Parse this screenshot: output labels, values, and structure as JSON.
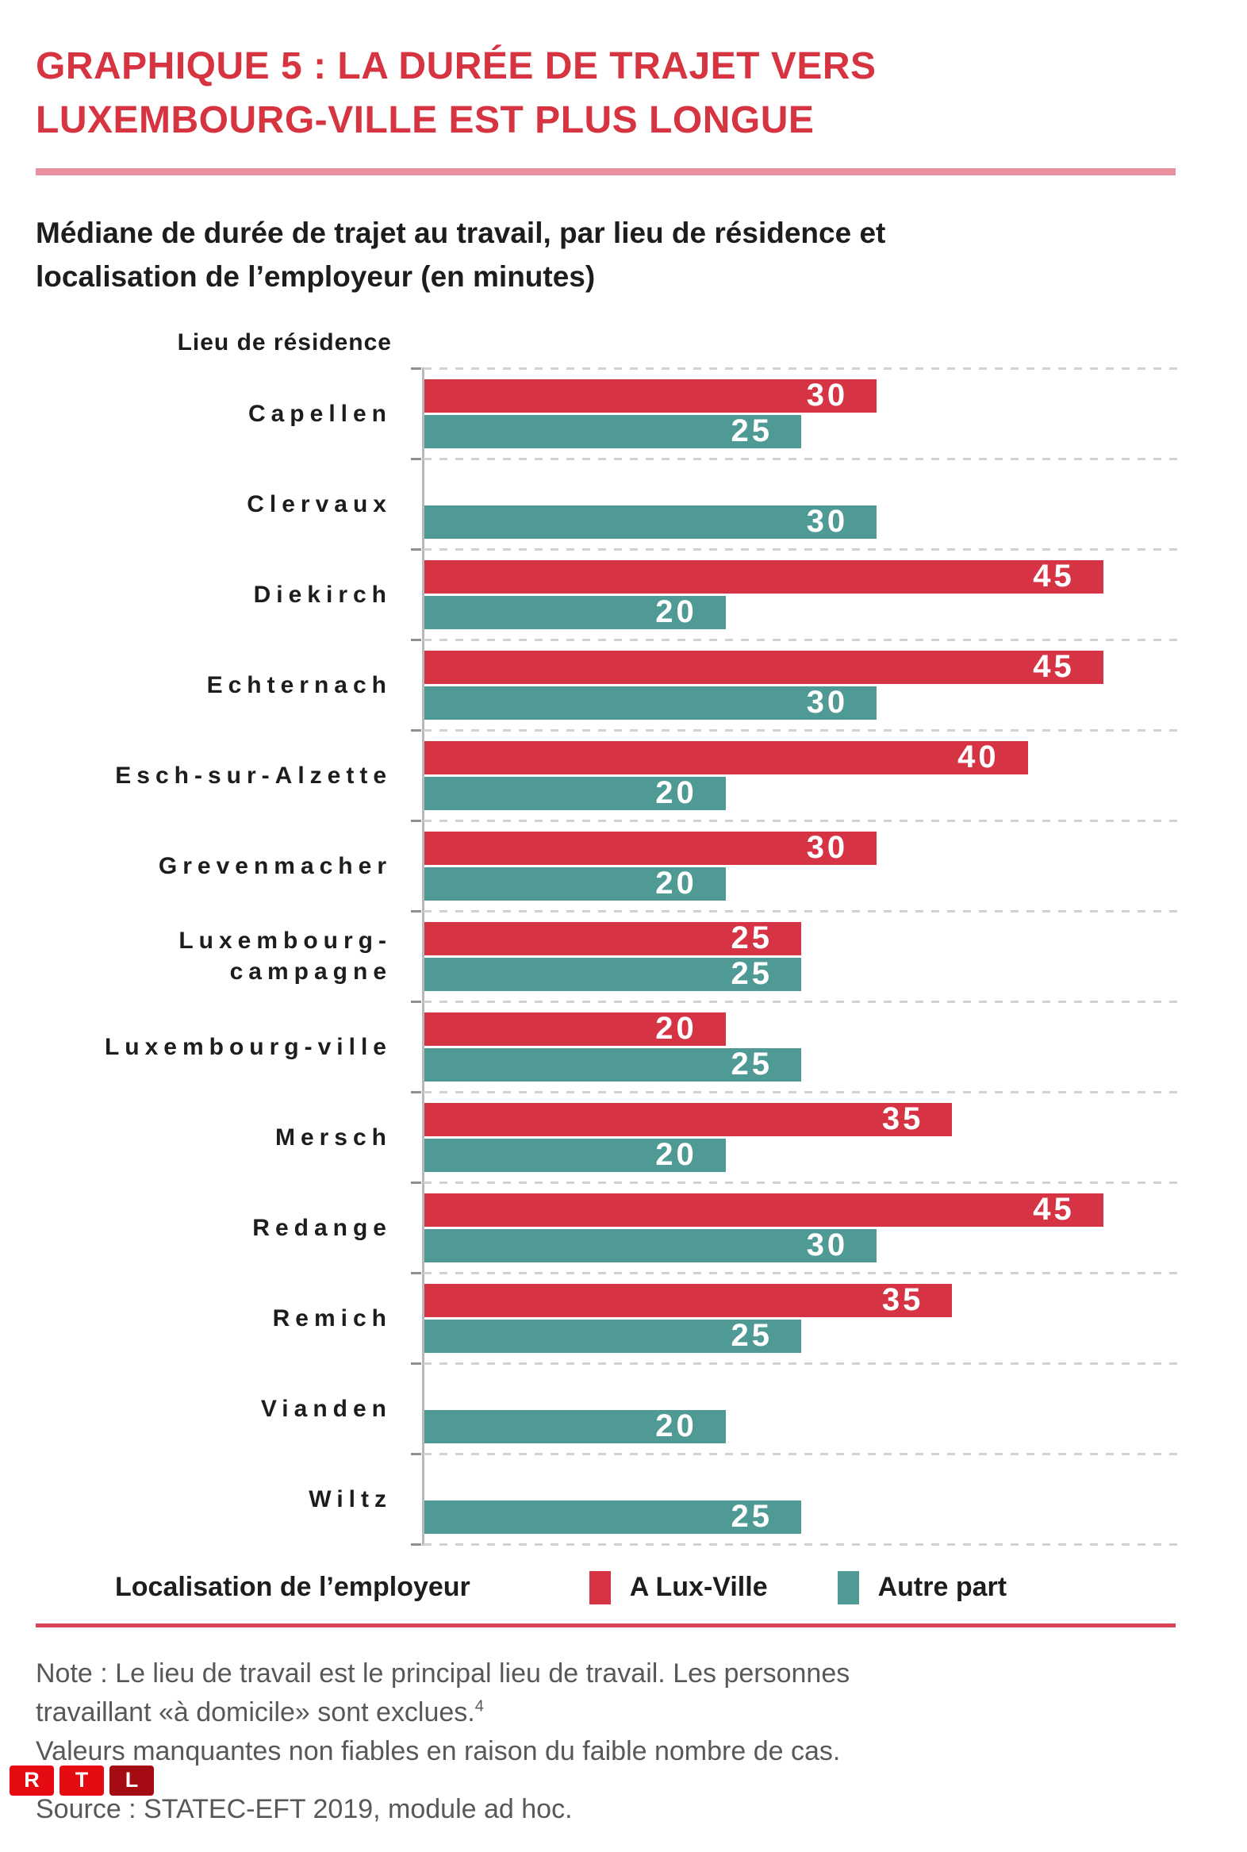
{
  "header": {
    "title_line1": "GRAPHIQUE 5 : LA DURÉE DE TRAJET VERS",
    "title_line2": "LUXEMBOURG-VILLE EST PLUS LONGUE"
  },
  "subtitle": {
    "line1": "Médiane de durée de trajet au travail, par lieu de résidence et",
    "line2": "localisation de l’employeur (en minutes)"
  },
  "chart_data": {
    "type": "bar",
    "orientation": "horizontal",
    "axis_label": "Lieu de résidence",
    "unit": "minutes",
    "categories": [
      "Capellen",
      "Clervaux",
      "Diekirch",
      "Echternach",
      "Esch-sur-Alzette",
      "Grevenmacher",
      "Luxembourg-\ncampagne",
      "Luxembourg-ville",
      "Mersch",
      "Redange",
      "Remich",
      "Vianden",
      "Wiltz"
    ],
    "series": [
      {
        "name": "A Lux-Ville",
        "color": "#d63345",
        "values": [
          30,
          null,
          45,
          45,
          40,
          30,
          25,
          20,
          35,
          45,
          35,
          null,
          null
        ]
      },
      {
        "name": "Autre part",
        "color": "#4f9a94",
        "values": [
          25,
          30,
          20,
          30,
          20,
          20,
          25,
          25,
          20,
          30,
          25,
          20,
          25
        ]
      }
    ],
    "xlim": [
      0,
      50
    ],
    "grid": "dashed horizontal category separators",
    "legend_position": "bottom",
    "value_labels": "inside bar, right aligned, white"
  },
  "legend": {
    "title": "Localisation de l’employeur",
    "items": [
      {
        "label": "A Lux-Ville",
        "color": "#d63345"
      },
      {
        "label": "Autre part",
        "color": "#4f9a94"
      }
    ]
  },
  "notes": {
    "line1": "Note : Le lieu de travail est le principal lieu de travail. Les personnes",
    "line2": "travaillant «à domicile» sont exclues.",
    "footnote_mark": "4",
    "line3": "Valeurs manquantes non fiables en raison du faible nombre de cas."
  },
  "logo": {
    "letters": [
      "R",
      "T",
      "L"
    ],
    "colors": [
      "#e60b12",
      "#e60b12",
      "#a50b12"
    ]
  },
  "source": "Source : STATEC-EFT 2019, module ad hoc.",
  "colors": {
    "title": "#d63440",
    "divider_top": "#e9909e",
    "divider_bottom": "#d84358",
    "bar_red": "#d63345",
    "bar_teal": "#4f9a94",
    "text_dark": "#1d1d1b",
    "text_gray": "#58585a",
    "gridline": "#d2d2d2",
    "axis": "#b8b8b8",
    "tick": "#8f8f8f",
    "value_label": "#ffffff"
  }
}
